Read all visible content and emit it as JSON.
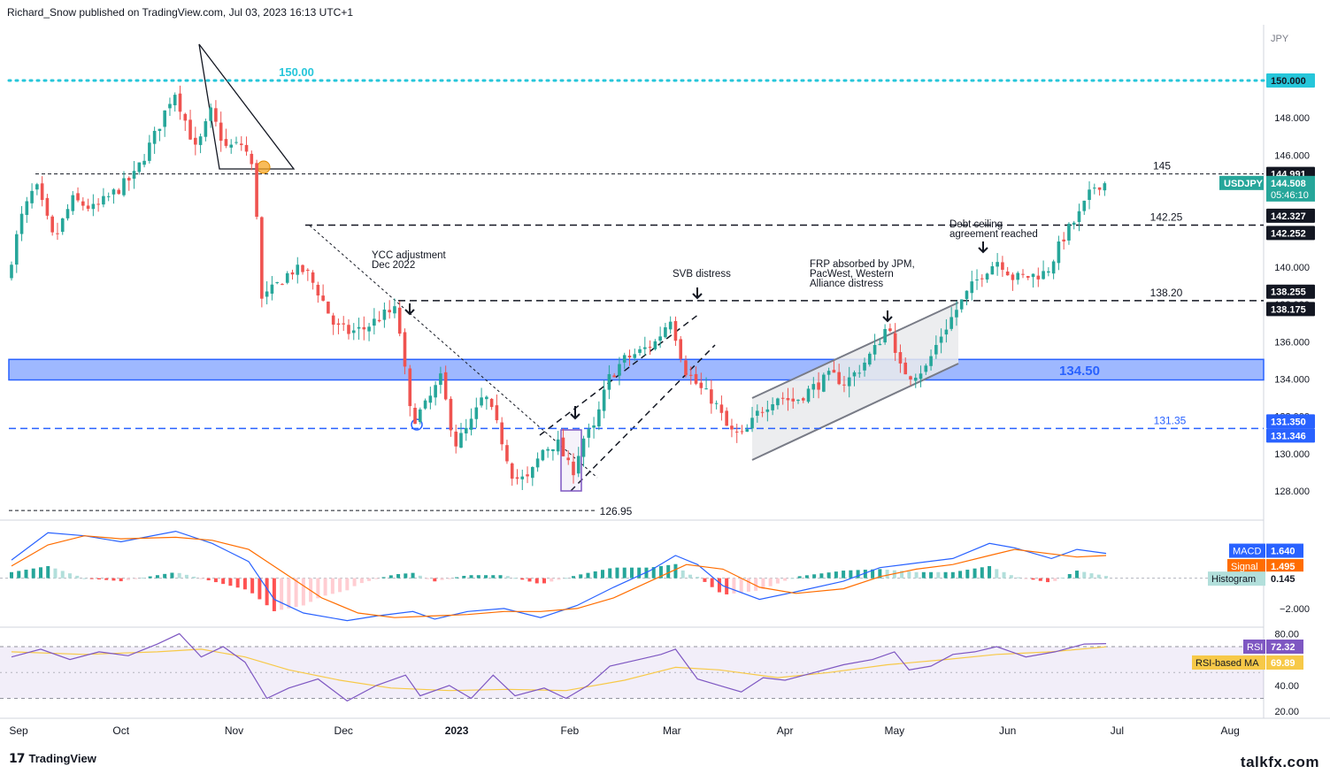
{
  "header": {
    "text": "Richard_Snow published on TradingView.com, Jul 03, 2023 16:13 UTC+1"
  },
  "footer": {
    "logo_text": "TradingView",
    "logo_icon": "tradingview-logo-icon",
    "watermark": "talkfx.com"
  },
  "chart_data": {
    "type": "candlestick",
    "symbol": "USDJPY",
    "currency_label": "JPY",
    "last_price": "144.508",
    "countdown": "05:46:10",
    "y_axis": {
      "ylim": [
        126.5,
        151.5
      ],
      "ticks": [
        "150.000",
        "148.000",
        "146.000",
        "144.000",
        "142.000",
        "140.000",
        "138.000",
        "136.000",
        "134.000",
        "132.000",
        "130.000",
        "128.000"
      ],
      "tick_values": [
        150,
        148,
        146,
        144,
        142,
        140,
        138,
        136,
        134,
        132,
        130,
        128
      ]
    },
    "x_axis": {
      "labels": [
        "Sep",
        "Oct",
        "Nov",
        "Dec",
        "2023",
        "Feb",
        "Mar",
        "Apr",
        "May",
        "Jun",
        "Jul",
        "Aug"
      ],
      "label_positions_days": [
        0,
        30,
        61,
        91,
        122,
        153,
        181,
        212,
        242,
        273,
        303,
        334
      ]
    },
    "price_path": [
      [
        0,
        139.3
      ],
      [
        4,
        142.6
      ],
      [
        8,
        144.4
      ],
      [
        13,
        141.4
      ],
      [
        18,
        143.6
      ],
      [
        24,
        143.1
      ],
      [
        29,
        143.9
      ],
      [
        35,
        144.9
      ],
      [
        41,
        147.2
      ],
      [
        46,
        149.5
      ],
      [
        52,
        146.2
      ],
      [
        56,
        148.3
      ],
      [
        60,
        146.4
      ],
      [
        65,
        146.6
      ],
      [
        68,
        144.9
      ],
      [
        70,
        138.2
      ],
      [
        74,
        139.0
      ],
      [
        78,
        139.8
      ],
      [
        82,
        139.8
      ],
      [
        86,
        138.5
      ],
      [
        90,
        136.8
      ],
      [
        94,
        136.5
      ],
      [
        98,
        136.7
      ],
      [
        103,
        137.4
      ],
      [
        107,
        137.7
      ],
      [
        111,
        131.7
      ],
      [
        115,
        132.6
      ],
      [
        119,
        134.0
      ],
      [
        123,
        130.5
      ],
      [
        127,
        131.5
      ],
      [
        131,
        133.2
      ],
      [
        135,
        131.2
      ],
      [
        139,
        128.7
      ],
      [
        143,
        128.6
      ],
      [
        147,
        130.2
      ],
      [
        151,
        130.6
      ],
      [
        155,
        128.9
      ],
      [
        158,
        130.8
      ],
      [
        161,
        131.3
      ],
      [
        165,
        134.0
      ],
      [
        169,
        135.0
      ],
      [
        174,
        135.5
      ],
      [
        178,
        136.0
      ],
      [
        182,
        137.3
      ],
      [
        186,
        134.5
      ],
      [
        190,
        133.5
      ],
      [
        194,
        132.8
      ],
      [
        198,
        131.2
      ],
      [
        202,
        130.9
      ],
      [
        206,
        132.2
      ],
      [
        211,
        133.1
      ],
      [
        216,
        132.8
      ],
      [
        220,
        133.4
      ],
      [
        226,
        134.2
      ],
      [
        230,
        133.8
      ],
      [
        234,
        134.6
      ],
      [
        238,
        135.6
      ],
      [
        242,
        137.1
      ],
      [
        244,
        134.7
      ],
      [
        248,
        134.2
      ],
      [
        252,
        134.6
      ],
      [
        256,
        136.3
      ],
      [
        260,
        137.6
      ],
      [
        264,
        138.8
      ],
      [
        268,
        139.8
      ],
      [
        272,
        140.4
      ],
      [
        276,
        139.4
      ],
      [
        280,
        139.5
      ],
      [
        285,
        139.7
      ],
      [
        290,
        141.7
      ],
      [
        294,
        142.8
      ],
      [
        298,
        144.3
      ],
      [
        300,
        144.5
      ]
    ],
    "horizontal_levels": [
      {
        "label": "150.00",
        "value": 150.0,
        "style": "dotted",
        "color": "#26c6da"
      },
      {
        "label": "145",
        "value": 144.991,
        "style": "dashed",
        "color": "#131722"
      },
      {
        "label": "142.25",
        "value": 142.25,
        "style": "dashed",
        "color": "#131722"
      },
      {
        "label": "138.20",
        "value": 138.2,
        "style": "dashed",
        "color": "#131722"
      },
      {
        "label": "131.35",
        "value": 131.35,
        "style": "dashed",
        "color": "#2962ff"
      },
      {
        "label": "126.95",
        "value": 126.95,
        "style": "dashed",
        "color": "#131722"
      }
    ],
    "support_zone": {
      "label": "134.50",
      "low": 133.95,
      "high": 135.05,
      "color": "#2962ff"
    },
    "price_tags": [
      {
        "text": "150.000",
        "value": 150.0,
        "bg": "#26c6da",
        "fg": "#131722"
      },
      {
        "text": "144.991",
        "value": 144.991,
        "bg": "#131722",
        "fg": "#ffffff"
      },
      {
        "text": "142.327",
        "value": 142.327,
        "bg": "#131722",
        "fg": "#ffffff"
      },
      {
        "text": "142.252",
        "value": 142.252,
        "bg": "#131722",
        "fg": "#ffffff"
      },
      {
        "text": "138.255",
        "value": 138.255,
        "bg": "#131722",
        "fg": "#ffffff"
      },
      {
        "text": "138.175",
        "value": 138.175,
        "bg": "#131722",
        "fg": "#ffffff"
      },
      {
        "text": "131.350",
        "value": 131.35,
        "bg": "#2962ff",
        "fg": "#ffffff"
      },
      {
        "text": "131.346",
        "value": 131.346,
        "bg": "#2962ff",
        "fg": "#ffffff"
      }
    ],
    "annotations": [
      {
        "lines": [
          "YCC adjustment",
          "Dec 2022"
        ],
        "day": 109,
        "value": 138.2
      },
      {
        "lines": [
          "SVB distress"
        ],
        "day": 181,
        "value": 137.3
      },
      {
        "lines": [
          "FRP absorbed by JPM,",
          "PacWest, Western",
          "Alliance distress"
        ],
        "day": 245,
        "value": 137.1
      },
      {
        "lines": [
          "Debt ceiling",
          "agreement reached"
        ],
        "day": 270,
        "value": 140.4
      }
    ],
    "macd": {
      "labels": {
        "macd": "MACD",
        "signal": "Signal",
        "histogram": "Histogram"
      },
      "values": {
        "macd": "1.640",
        "signal": "1.495",
        "histogram": "0.145"
      },
      "axis_tick": "−2.000",
      "ylim": [
        -3.0,
        3.6
      ],
      "macd_line": [
        [
          0,
          1.2
        ],
        [
          10,
          3.0
        ],
        [
          20,
          2.8
        ],
        [
          30,
          2.4
        ],
        [
          45,
          3.1
        ],
        [
          55,
          2.3
        ],
        [
          65,
          1.1
        ],
        [
          72,
          -1.4
        ],
        [
          80,
          -2.3
        ],
        [
          92,
          -2.8
        ],
        [
          100,
          -2.5
        ],
        [
          110,
          -2.2
        ],
        [
          116,
          -2.7
        ],
        [
          125,
          -2.2
        ],
        [
          135,
          -2.0
        ],
        [
          145,
          -2.6
        ],
        [
          155,
          -1.8
        ],
        [
          165,
          -0.6
        ],
        [
          175,
          0.5
        ],
        [
          182,
          1.5
        ],
        [
          188,
          0.9
        ],
        [
          195,
          -0.5
        ],
        [
          205,
          -1.4
        ],
        [
          215,
          -0.9
        ],
        [
          228,
          -0.2
        ],
        [
          238,
          0.7
        ],
        [
          248,
          1.0
        ],
        [
          258,
          1.3
        ],
        [
          268,
          2.3
        ],
        [
          275,
          2.0
        ],
        [
          285,
          1.3
        ],
        [
          292,
          1.9
        ],
        [
          300,
          1.64
        ]
      ],
      "signal_line": [
        [
          0,
          0.8
        ],
        [
          10,
          2.2
        ],
        [
          20,
          2.8
        ],
        [
          30,
          2.6
        ],
        [
          45,
          2.7
        ],
        [
          55,
          2.5
        ],
        [
          65,
          1.9
        ],
        [
          75,
          0.3
        ],
        [
          85,
          -1.3
        ],
        [
          95,
          -2.3
        ],
        [
          105,
          -2.6
        ],
        [
          115,
          -2.5
        ],
        [
          125,
          -2.4
        ],
        [
          135,
          -2.2
        ],
        [
          145,
          -2.2
        ],
        [
          155,
          -2.0
        ],
        [
          165,
          -1.3
        ],
        [
          175,
          -0.2
        ],
        [
          185,
          0.9
        ],
        [
          195,
          0.6
        ],
        [
          205,
          -0.6
        ],
        [
          215,
          -1.0
        ],
        [
          228,
          -0.7
        ],
        [
          238,
          0.1
        ],
        [
          248,
          0.6
        ],
        [
          258,
          0.9
        ],
        [
          268,
          1.5
        ],
        [
          275,
          1.9
        ],
        [
          285,
          1.6
        ],
        [
          292,
          1.4
        ],
        [
          300,
          1.495
        ]
      ]
    },
    "rsi": {
      "labels": {
        "rsi": "RSI",
        "ma": "RSI-based MA"
      },
      "values": {
        "rsi": "72.32",
        "ma": "69.89"
      },
      "axis_ticks": [
        "80.00",
        "40.00",
        "20.00"
      ],
      "axis_tick_values": [
        80,
        40,
        20
      ],
      "ylim": [
        16,
        83
      ],
      "bands": [
        30,
        70
      ],
      "rsi_line": [
        [
          0,
          62
        ],
        [
          8,
          68
        ],
        [
          16,
          60
        ],
        [
          24,
          66
        ],
        [
          32,
          63
        ],
        [
          40,
          72
        ],
        [
          46,
          80
        ],
        [
          52,
          62
        ],
        [
          58,
          70
        ],
        [
          64,
          58
        ],
        [
          70,
          30
        ],
        [
          76,
          38
        ],
        [
          84,
          45
        ],
        [
          92,
          28
        ],
        [
          100,
          40
        ],
        [
          108,
          48
        ],
        [
          112,
          32
        ],
        [
          120,
          40
        ],
        [
          126,
          30
        ],
        [
          132,
          48
        ],
        [
          138,
          32
        ],
        [
          146,
          38
        ],
        [
          152,
          30
        ],
        [
          158,
          40
        ],
        [
          164,
          55
        ],
        [
          172,
          60
        ],
        [
          178,
          64
        ],
        [
          182,
          68
        ],
        [
          188,
          45
        ],
        [
          194,
          40
        ],
        [
          200,
          35
        ],
        [
          206,
          46
        ],
        [
          212,
          44
        ],
        [
          220,
          50
        ],
        [
          228,
          56
        ],
        [
          236,
          60
        ],
        [
          242,
          66
        ],
        [
          246,
          52
        ],
        [
          252,
          55
        ],
        [
          258,
          64
        ],
        [
          264,
          66
        ],
        [
          270,
          70
        ],
        [
          278,
          62
        ],
        [
          286,
          66
        ],
        [
          294,
          72
        ],
        [
          300,
          72.32
        ]
      ],
      "ma_line": [
        [
          0,
          66
        ],
        [
          20,
          64
        ],
        [
          40,
          66
        ],
        [
          52,
          68
        ],
        [
          64,
          62
        ],
        [
          76,
          52
        ],
        [
          90,
          44
        ],
        [
          104,
          38
        ],
        [
          120,
          36
        ],
        [
          136,
          37
        ],
        [
          152,
          36
        ],
        [
          168,
          44
        ],
        [
          182,
          54
        ],
        [
          194,
          52
        ],
        [
          210,
          46
        ],
        [
          224,
          50
        ],
        [
          240,
          56
        ],
        [
          256,
          60
        ],
        [
          270,
          64
        ],
        [
          285,
          66
        ],
        [
          300,
          69.89
        ]
      ]
    }
  }
}
